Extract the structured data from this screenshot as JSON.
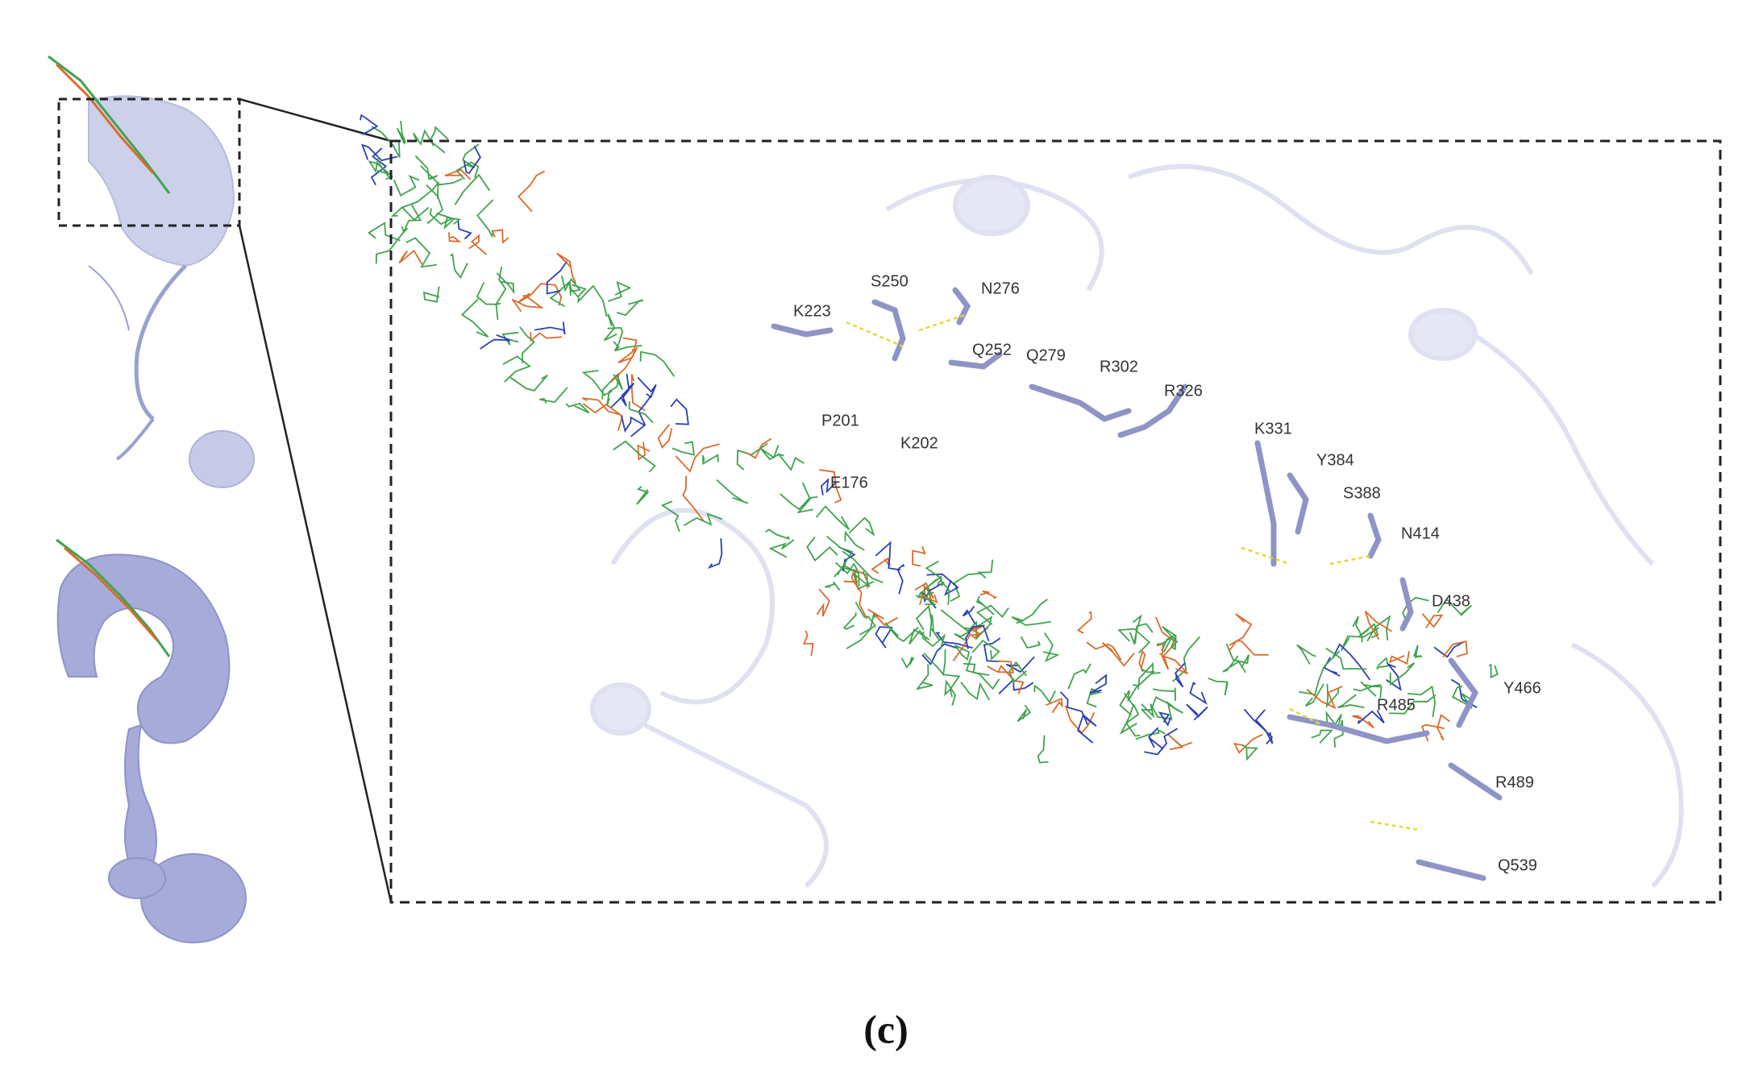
{
  "labels": [
    "S250",
    "N276",
    "K223",
    "Q252",
    "Q279",
    "R302",
    "R326",
    "P201",
    "K202",
    "E176",
    "K331",
    "Y384",
    "S388",
    "N414",
    "D438",
    "Y466",
    "R485",
    "R489",
    "Q539"
  ],
  "caption": "(c)"
}
